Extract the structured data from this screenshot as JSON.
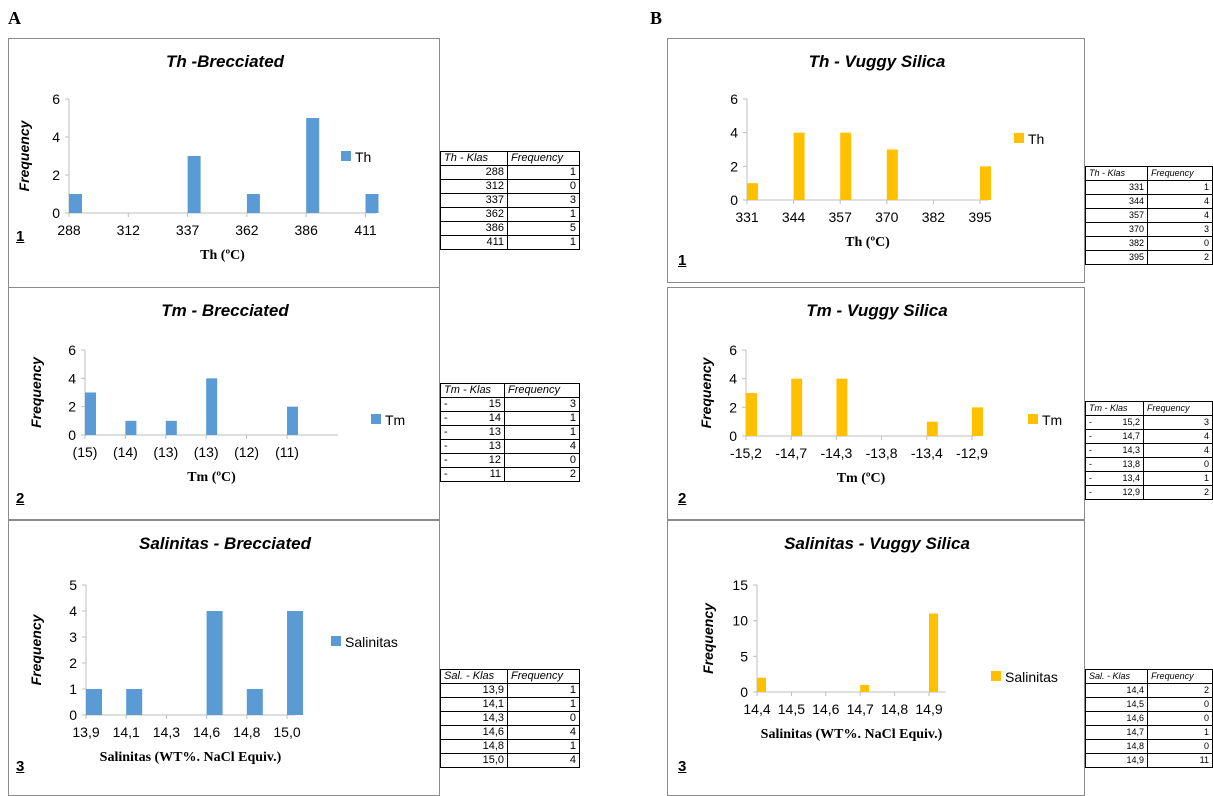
{
  "labels": {
    "a": "A",
    "b": "B"
  },
  "colors": {
    "blue": "#5b9bd5",
    "yellow": "#ffc000",
    "axis": "#bfbfbf"
  },
  "chart_data": [
    {
      "id": "a1",
      "type": "bar",
      "title": "Th -Brecciated",
      "xlabel": "Th (ºC)",
      "ylabel": "Frequency",
      "panel_number": "1",
      "legend": "Th",
      "color": "#5b9bd5",
      "categories": [
        "288",
        "312",
        "337",
        "362",
        "386",
        "411"
      ],
      "values": [
        1,
        0,
        3,
        1,
        5,
        1
      ],
      "ylim": [
        0,
        6
      ],
      "yticks": [
        "0",
        "2",
        "4",
        "6"
      ],
      "table": {
        "headers": [
          "Th - Klas",
          "Frequency"
        ],
        "rows": [
          [
            "288",
            "1"
          ],
          [
            "312",
            "0"
          ],
          [
            "337",
            "3"
          ],
          [
            "362",
            "1"
          ],
          [
            "386",
            "5"
          ],
          [
            "411",
            "1"
          ]
        ]
      }
    },
    {
      "id": "a2",
      "type": "bar",
      "title": "Tm - Brecciated",
      "xlabel": "Tm (ºC)",
      "ylabel": "Frequency",
      "panel_number": "2",
      "legend": "Tm",
      "color": "#5b9bd5",
      "categories": [
        "(15)",
        "(14)",
        "(13)",
        "(13)",
        "(12)",
        "(11)"
      ],
      "values": [
        3,
        1,
        1,
        4,
        0,
        2
      ],
      "ylim": [
        0,
        6
      ],
      "yticks": [
        "0",
        "2",
        "4",
        "6"
      ],
      "table": {
        "headers": [
          "Tm - Klas",
          "Frequency"
        ],
        "rows": [
          [
            "-",
            "15",
            "3"
          ],
          [
            "-",
            "14",
            "1"
          ],
          [
            "-",
            "13",
            "1"
          ],
          [
            "-",
            "13",
            "4"
          ],
          [
            "-",
            "12",
            "0"
          ],
          [
            "-",
            "11",
            "2"
          ]
        ]
      }
    },
    {
      "id": "a3",
      "type": "bar",
      "title": "Salinitas - Brecciated",
      "xlabel": "Salinitas (WT%. NaCl Equiv.)",
      "ylabel": "Frequency",
      "panel_number": "3",
      "legend": "Salinitas",
      "color": "#5b9bd5",
      "categories": [
        "13,9",
        "14,1",
        "14,3",
        "14,6",
        "14,8",
        "15,0"
      ],
      "values": [
        1,
        1,
        0,
        4,
        1,
        4
      ],
      "ylim": [
        0,
        5
      ],
      "yticks": [
        "0",
        "1",
        "2",
        "3",
        "4",
        "5"
      ],
      "table": {
        "headers": [
          "Sal. - Klas",
          "Frequency"
        ],
        "rows": [
          [
            "13,9",
            "1"
          ],
          [
            "14,1",
            "1"
          ],
          [
            "14,3",
            "0"
          ],
          [
            "14,6",
            "4"
          ],
          [
            "14,8",
            "1"
          ],
          [
            "15,0",
            "4"
          ]
        ]
      }
    },
    {
      "id": "b1",
      "type": "bar",
      "title": "Th - Vuggy Silica",
      "xlabel": "Th (ºC)",
      "ylabel": "",
      "panel_number": "1",
      "legend": "Th",
      "color": "#ffc000",
      "categories": [
        "331",
        "344",
        "357",
        "370",
        "382",
        "395"
      ],
      "values": [
        1,
        4,
        4,
        3,
        0,
        2
      ],
      "ylim": [
        0,
        6
      ],
      "yticks": [
        "0",
        "2",
        "4",
        "6"
      ],
      "table": {
        "headers": [
          "Th - Klas",
          "Frequency"
        ],
        "rows": [
          [
            "331",
            "1"
          ],
          [
            "344",
            "4"
          ],
          [
            "357",
            "4"
          ],
          [
            "370",
            "3"
          ],
          [
            "382",
            "0"
          ],
          [
            "395",
            "2"
          ]
        ]
      }
    },
    {
      "id": "b2",
      "type": "bar",
      "title": "Tm - Vuggy Silica",
      "xlabel": "Tm (ºC)",
      "ylabel": "Frequency",
      "panel_number": "2",
      "legend": "Tm",
      "color": "#ffc000",
      "categories": [
        "-15,2",
        "-14,7",
        "-14,3",
        "-13,8",
        "-13,4",
        "-12,9"
      ],
      "values": [
        3,
        4,
        4,
        0,
        1,
        2
      ],
      "ylim": [
        0,
        6
      ],
      "yticks": [
        "0",
        "2",
        "4",
        "6"
      ],
      "table": {
        "headers": [
          "Tm - Klas",
          "Frequency"
        ],
        "rows": [
          [
            "-",
            "15,2",
            "3"
          ],
          [
            "-",
            "14,7",
            "4"
          ],
          [
            "-",
            "14,3",
            "4"
          ],
          [
            "-",
            "13,8",
            "0"
          ],
          [
            "-",
            "13,4",
            "1"
          ],
          [
            "-",
            "12,9",
            "2"
          ]
        ]
      }
    },
    {
      "id": "b3",
      "type": "bar",
      "title": "Salinitas - Vuggy Silica",
      "xlabel": "Salinitas (WT%. NaCl Equiv.)",
      "ylabel": "Frequency",
      "panel_number": "3",
      "legend": "Salinitas",
      "color": "#ffc000",
      "categories": [
        "14,4",
        "14,5",
        "14,6",
        "14,7",
        "14,8",
        "14,9"
      ],
      "values": [
        2,
        0,
        0,
        1,
        0,
        11
      ],
      "ylim": [
        0,
        15
      ],
      "yticks": [
        "0",
        "5",
        "10",
        "15"
      ],
      "table": {
        "headers": [
          "Sal. - Klas",
          "Frequency"
        ],
        "rows": [
          [
            "14,4",
            "2"
          ],
          [
            "14,5",
            "0"
          ],
          [
            "14,6",
            "0"
          ],
          [
            "14,7",
            "1"
          ],
          [
            "14,8",
            "0"
          ],
          [
            "14,9",
            "11"
          ]
        ]
      }
    }
  ]
}
